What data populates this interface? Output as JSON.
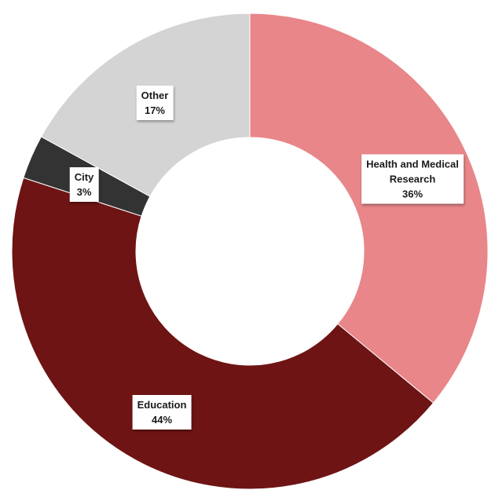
{
  "chart_data": {
    "type": "pie",
    "style": "donut",
    "title": "",
    "legend": "none",
    "slices": [
      {
        "label": "Health and Medical Research",
        "label_lines": [
          "Health and Medical",
          "Research"
        ],
        "value": 36,
        "value_label": "36%",
        "color": "#e8868a"
      },
      {
        "label": "Education",
        "label_lines": [
          "Education"
        ],
        "value": 44,
        "value_label": "44%",
        "color": "#6e1414"
      },
      {
        "label": "City",
        "label_lines": [
          "City"
        ],
        "value": 3,
        "value_label": "3%",
        "color": "#333333"
      },
      {
        "label": "Other",
        "label_lines": [
          "Other"
        ],
        "value": 17,
        "value_label": "17%",
        "color": "#d4d4d4"
      }
    ]
  }
}
